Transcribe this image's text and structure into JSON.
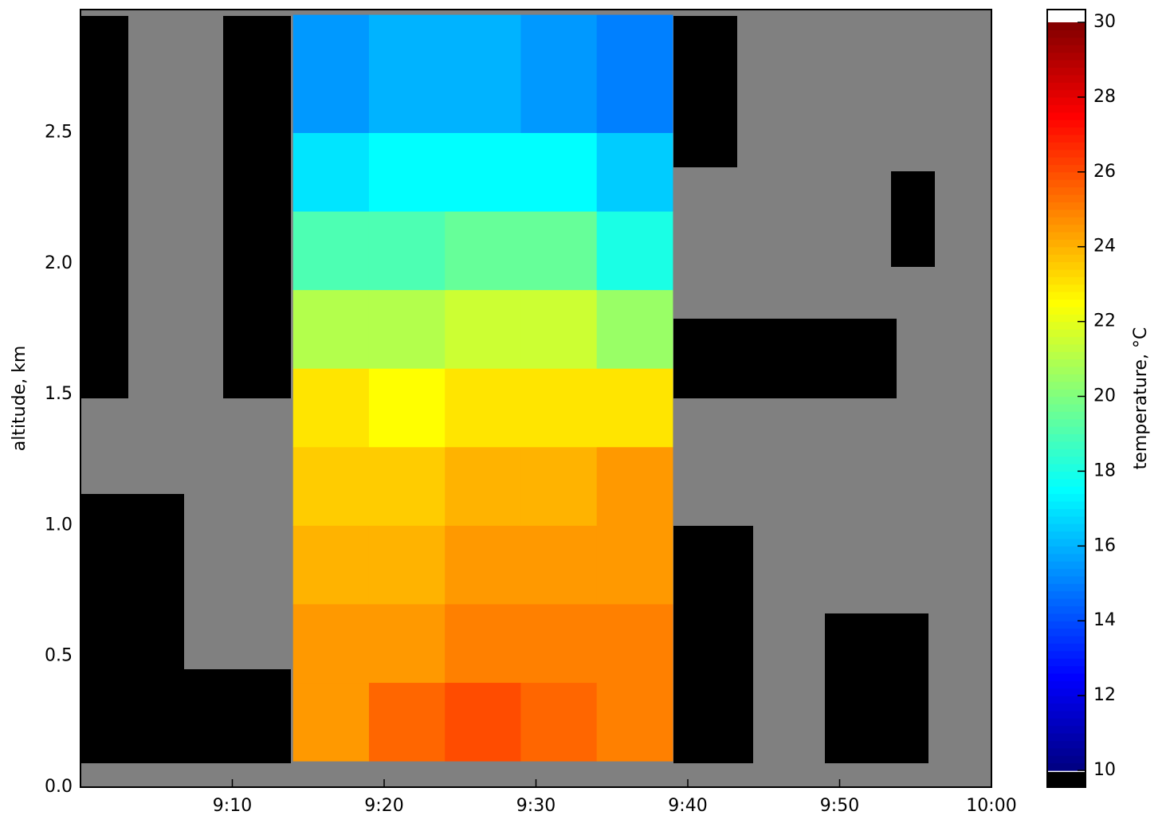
{
  "chart_data": {
    "type": "heatmap",
    "ylabel": "altitude, km",
    "colorbar_label": "temperature, °C",
    "colormap": "jet",
    "xlim": [
      540,
      600
    ],
    "xticks": [
      {
        "value": 550,
        "label": "9:10"
      },
      {
        "value": 560,
        "label": "9:20"
      },
      {
        "value": 570,
        "label": "9:30"
      },
      {
        "value": 580,
        "label": "9:40"
      },
      {
        "value": 590,
        "label": "9:50"
      },
      {
        "value": 600,
        "label": "10:00"
      }
    ],
    "ylim": [
      0,
      2.97
    ],
    "yticks": [
      {
        "value": 0,
        "label": "0.0"
      },
      {
        "value": 0.5,
        "label": "0.5"
      },
      {
        "value": 1,
        "label": "1.0"
      },
      {
        "value": 1.5,
        "label": "1.5"
      },
      {
        "value": 2,
        "label": "2.0"
      },
      {
        "value": 2.5,
        "label": "2.5"
      }
    ],
    "clim": [
      10,
      30
    ],
    "cticks": [
      10,
      12,
      14,
      16,
      18,
      20,
      22,
      24,
      26,
      28,
      30
    ],
    "x_edges": [
      554,
      559,
      564,
      569,
      574,
      579
    ],
    "y_edges": [
      0.1,
      0.4,
      0.7,
      1.0,
      1.3,
      1.6,
      1.9,
      2.2,
      2.5,
      2.95
    ],
    "values": [
      [
        24.5,
        25.5,
        26,
        25.5,
        25
      ],
      [
        24.5,
        24.5,
        25,
        25,
        25
      ],
      [
        24,
        24,
        24.5,
        24.5,
        24.5
      ],
      [
        23.5,
        23.5,
        24,
        24,
        24.5
      ],
      [
        23,
        22.5,
        23,
        23,
        23
      ],
      [
        21,
        21,
        21.5,
        21.5,
        20.5
      ],
      [
        19,
        19,
        19.5,
        19.5,
        18
      ],
      [
        17,
        17.5,
        17.5,
        17.5,
        16.5
      ],
      [
        15.5,
        16,
        16,
        15.5,
        15
      ]
    ]
  }
}
